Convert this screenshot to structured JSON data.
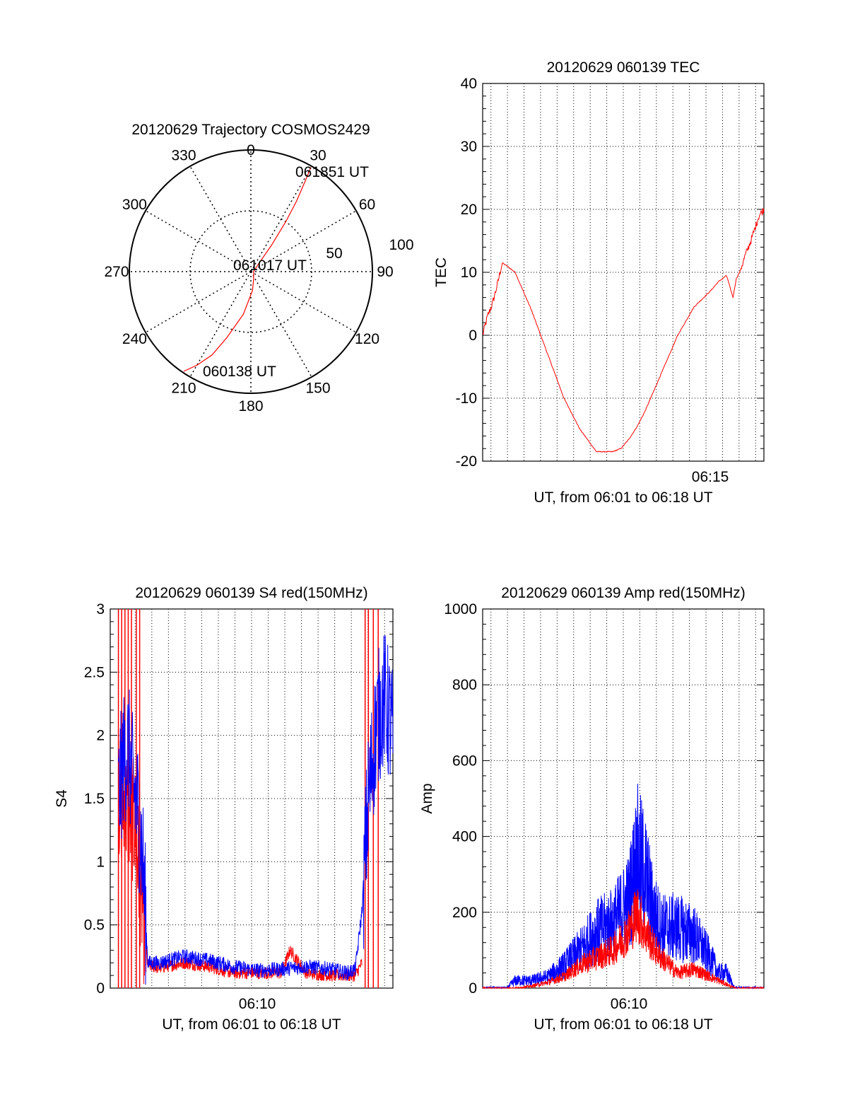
{
  "colors": {
    "red": "#ff0000",
    "blue": "#0000ff",
    "axis": "#000000",
    "grid": "#000000"
  },
  "chart_data": [
    {
      "type": "polar-trajectory",
      "title": "20120629 Trajectory COSMOS2429",
      "azimuth_ticks": [
        "0",
        "30",
        "60",
        "90",
        "120",
        "150",
        "180",
        "210",
        "240",
        "270",
        "300",
        "330"
      ],
      "radial_ticks": [
        "50",
        "100"
      ],
      "annotations": [
        "061851 UT",
        "061017 UT",
        "060138 UT"
      ],
      "series": [
        {
          "color": "red",
          "points_az_deg_zen_deg": [
            [
              214,
              89
            ],
            [
              210,
              80
            ],
            [
              205,
              68
            ],
            [
              200,
              52
            ],
            [
              190,
              32
            ],
            [
              175,
              14
            ],
            [
              160,
              6
            ],
            [
              90,
              2
            ],
            [
              45,
              8
            ],
            [
              38,
              25
            ],
            [
              35,
              45
            ],
            [
              33,
              62
            ],
            [
              31,
              78
            ],
            [
              30,
              89
            ]
          ]
        }
      ]
    },
    {
      "type": "line",
      "title": "20120629 060139 TEC",
      "xlabel": "UT, from 06:01 to 06:18 UT",
      "ylabel": "TEC",
      "xlim": [
        0,
        17.3
      ],
      "ylim": [
        -20,
        40
      ],
      "x_ticks": [
        {
          "x": 14,
          "label": "06:15"
        }
      ],
      "y_ticks": [
        "-20",
        "-10",
        "0",
        "10",
        "20",
        "30",
        "40"
      ],
      "series": [
        {
          "color": "red",
          "x": [
            0,
            0.3,
            0.6,
            0.9,
            1.2,
            1.5,
            2.0,
            2.5,
            3.0,
            4.0,
            5.0,
            6.0,
            7.0,
            8.0,
            8.5,
            9.0,
            9.5,
            10.0,
            11.0,
            12.0,
            13.0,
            14.0,
            14.5,
            15.0,
            15.4,
            15.6,
            15.8,
            16.2,
            16.5,
            17.0,
            17.3
          ],
          "y": [
            0,
            3,
            5,
            8,
            11.5,
            11,
            10,
            7,
            4,
            -3,
            -10,
            -15,
            -18.5,
            -18.5,
            -18,
            -16.5,
            -14.5,
            -12,
            -6,
            0,
            4.5,
            7,
            8.5,
            9.5,
            6,
            9,
            10,
            13,
            15,
            19,
            20
          ]
        }
      ]
    },
    {
      "type": "line",
      "title": "20120629 060139 S4 red(150MHz)",
      "xlabel": "UT, from 06:01 to 06:18 UT",
      "ylabel": "S4",
      "xlim": [
        0,
        17.3
      ],
      "ylim": [
        0,
        3
      ],
      "x_ticks": [
        {
          "x": 9,
          "label": "06:10"
        }
      ],
      "y_ticks": [
        "0",
        "0.5",
        "1",
        "1.5",
        "2",
        "2.5",
        "3"
      ],
      "series": [
        {
          "color": "blue",
          "x": [
            0.5,
            0.8,
            1.1,
            1.4,
            1.7,
            2.0,
            2.3,
            3.0,
            4.5,
            6.0,
            7.5,
            9.0,
            10.5,
            12.0,
            13.5,
            14.5,
            15.0,
            15.4,
            15.8,
            16.3,
            16.8,
            17.3
          ],
          "y": [
            1.5,
            1.8,
            1.9,
            1.6,
            1.4,
            1.0,
            0.2,
            0.2,
            0.25,
            0.22,
            0.17,
            0.14,
            0.15,
            0.17,
            0.15,
            0.12,
            0.15,
            0.6,
            1.5,
            2.1,
            2.3,
            2.0
          ]
        },
        {
          "color": "red",
          "x": [
            0.5,
            1.0,
            1.5,
            2.0,
            2.3,
            3.0,
            4.5,
            6.0,
            7.5,
            9.0,
            10.5,
            11.0,
            12.0,
            13.5,
            14.5,
            15.0,
            15.4
          ],
          "y": [
            1.5,
            1.4,
            1.3,
            0.6,
            0.18,
            0.16,
            0.2,
            0.17,
            0.12,
            0.12,
            0.12,
            0.3,
            0.12,
            0.1,
            0.1,
            0.1,
            0.2
          ]
        }
      ]
    },
    {
      "type": "line",
      "title": "20120629 060139 Amp red(150MHz)",
      "xlabel": "UT, from 06:01 to 06:18 UT",
      "ylabel": "Amp",
      "xlim": [
        0,
        17.3
      ],
      "ylim": [
        0,
        1000
      ],
      "x_ticks": [
        {
          "x": 9,
          "label": "06:10"
        }
      ],
      "y_ticks": [
        "0",
        "200",
        "400",
        "600",
        "800",
        "1000"
      ],
      "series": [
        {
          "color": "blue",
          "x": [
            0,
            1.5,
            2.0,
            3.0,
            4.0,
            5.0,
            6.0,
            7.0,
            8.0,
            9.0,
            9.5,
            10.0,
            10.5,
            11.0,
            12.0,
            13.0,
            14.0,
            14.5,
            15.0,
            15.5,
            17.3
          ],
          "y": [
            0,
            0,
            20,
            20,
            30,
            60,
            100,
            150,
            170,
            230,
            350,
            300,
            200,
            160,
            160,
            140,
            80,
            40,
            40,
            0,
            0
          ]
        },
        {
          "color": "red",
          "x": [
            0,
            2.0,
            3.0,
            4.0,
            5.0,
            6.0,
            7.0,
            8.0,
            9.0,
            9.5,
            10.0,
            10.5,
            11.0,
            12.0,
            13.0,
            14.0,
            15.0,
            15.5,
            17.3
          ],
          "y": [
            0,
            0,
            5,
            15,
            30,
            60,
            80,
            100,
            150,
            200,
            150,
            110,
            80,
            40,
            50,
            30,
            10,
            0,
            0
          ]
        }
      ]
    }
  ]
}
